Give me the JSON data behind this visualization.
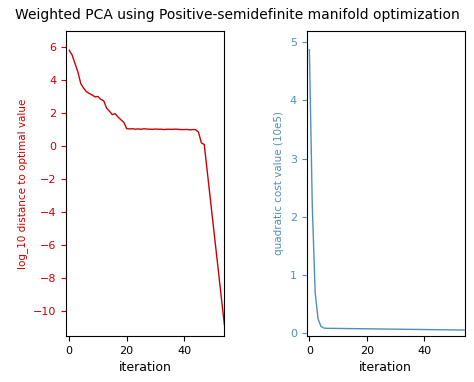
{
  "title": "Weighted PCA using Positive-semidefinite manifold optimization",
  "title_fontsize": 10,
  "left_ylabel": "log_10 distance to optimal value",
  "right_ylabel": "quadratic cost value (10e5)",
  "xlabel": "iteration",
  "left_color": "#cc0000",
  "right_color": "#4e90b8",
  "left_ylim": [
    -11.5,
    7
  ],
  "right_ylim": [
    -0.05,
    5.2
  ],
  "left_yticks": [
    -10,
    -8,
    -6,
    -4,
    -2,
    0,
    2,
    4,
    6
  ],
  "right_yticks": [
    0,
    1,
    2,
    3,
    4,
    5
  ],
  "xticks": [
    0,
    20,
    40
  ],
  "n_iters": 55,
  "figsize": [
    4.74,
    3.82
  ],
  "dpi": 100
}
